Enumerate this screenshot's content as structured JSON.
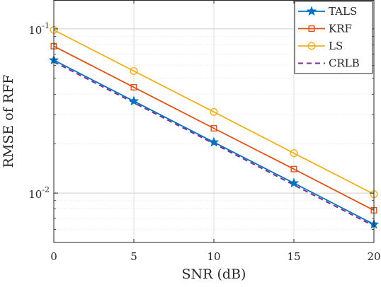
{
  "chart_data": {
    "type": "line",
    "title": "",
    "xlabel": "SNR (dB)",
    "ylabel": "RMSE of RFF",
    "yscale": "log",
    "xlim": [
      0,
      20
    ],
    "ylim": [
      0.005,
      0.15
    ],
    "grid": true,
    "legend_position": "top-right",
    "x": [
      0,
      5,
      10,
      15,
      20
    ],
    "xticks": [
      0,
      5,
      10,
      15,
      20
    ],
    "xtick_labels": [
      "0",
      "5",
      "10",
      "15",
      "20"
    ],
    "yticks": [
      0.01,
      0.1
    ],
    "ytick_labels": [
      {
        "base": "10",
        "exp": "-2"
      },
      {
        "base": "10",
        "exp": "-1"
      }
    ],
    "series": [
      {
        "name": "TALS",
        "values": [
          0.0645,
          0.0363,
          0.0204,
          0.0115,
          0.00645
        ],
        "color": "#0072BD",
        "marker": "star",
        "dash": ""
      },
      {
        "name": "KRF",
        "values": [
          0.0785,
          0.0441,
          0.0248,
          0.014,
          0.00785
        ],
        "color": "#D95319",
        "marker": "square",
        "dash": ""
      },
      {
        "name": "LS",
        "values": [
          0.0985,
          0.0554,
          0.0312,
          0.0175,
          0.00985
        ],
        "color": "#EDB120",
        "marker": "circle",
        "dash": ""
      },
      {
        "name": "CRLB",
        "values": [
          0.063,
          0.0355,
          0.02,
          0.0112,
          0.0063
        ],
        "color": "#7E2F8E",
        "marker": "none",
        "dash": "7,5"
      }
    ]
  }
}
